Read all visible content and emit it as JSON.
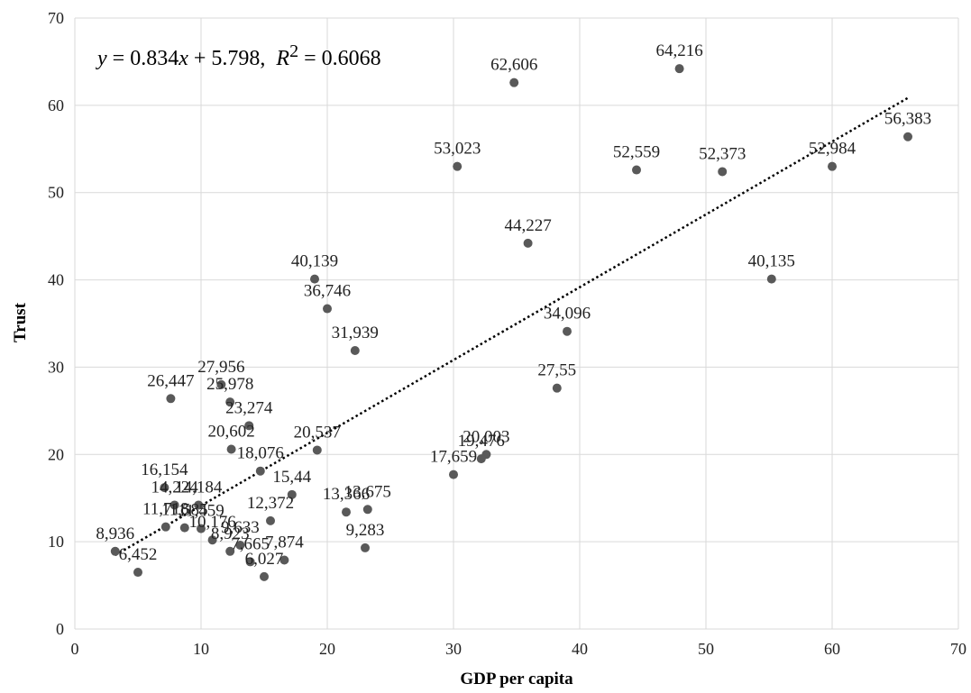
{
  "chart_data": {
    "type": "scatter",
    "xlabel": "GDP per capita",
    "ylabel": "Trust",
    "xlim": [
      0,
      70
    ],
    "ylim": [
      0,
      70
    ],
    "xticks": [
      "0",
      "10",
      "20",
      "30",
      "40",
      "50",
      "60",
      "70"
    ],
    "yticks": [
      "0",
      "10",
      "20",
      "30",
      "40",
      "50",
      "60",
      "70"
    ],
    "grid": true,
    "trendline": {
      "style": "dotted",
      "slope": 0.834,
      "intercept": 5.798,
      "r2": 0.6068
    },
    "equation_text": "y = 0.834x + 5.798,  R² = 0.6068",
    "points": [
      {
        "x": 47.9,
        "y": 64.2,
        "label": "64,216"
      },
      {
        "x": 34.8,
        "y": 62.6,
        "label": "62,606"
      },
      {
        "x": 66.0,
        "y": 56.4,
        "label": "56,383"
      },
      {
        "x": 30.3,
        "y": 53.0,
        "label": "53,023"
      },
      {
        "x": 60.0,
        "y": 53.0,
        "label": "52,984"
      },
      {
        "x": 44.5,
        "y": 52.6,
        "label": "52,559"
      },
      {
        "x": 51.3,
        "y": 52.4,
        "label": "52,373"
      },
      {
        "x": 35.9,
        "y": 44.2,
        "label": "44,227"
      },
      {
        "x": 19.0,
        "y": 40.1,
        "label": "40,139"
      },
      {
        "x": 55.2,
        "y": 40.1,
        "label": "40,135"
      },
      {
        "x": 20.0,
        "y": 36.7,
        "label": "36,746"
      },
      {
        "x": 39.0,
        "y": 34.1,
        "label": "34,096"
      },
      {
        "x": 22.2,
        "y": 31.9,
        "label": "31,939"
      },
      {
        "x": 11.6,
        "y": 28.0,
        "label": "27,956"
      },
      {
        "x": 38.2,
        "y": 27.6,
        "label": "27,55"
      },
      {
        "x": 7.6,
        "y": 26.4,
        "label": "26,447"
      },
      {
        "x": 12.3,
        "y": 26.0,
        "label": "25,978"
      },
      {
        "x": 13.8,
        "y": 23.3,
        "label": "23,274"
      },
      {
        "x": 12.4,
        "y": 20.6,
        "label": "20,602"
      },
      {
        "x": 19.2,
        "y": 20.5,
        "label": "20,537"
      },
      {
        "x": 32.6,
        "y": 20.0,
        "label": "20,003"
      },
      {
        "x": 32.2,
        "y": 19.5,
        "label": "19,476"
      },
      {
        "x": 14.7,
        "y": 18.1,
        "label": "18,076"
      },
      {
        "x": 30.0,
        "y": 17.7,
        "label": "17,659"
      },
      {
        "x": 7.1,
        "y": 16.2,
        "label": "16,154"
      },
      {
        "x": 17.2,
        "y": 15.4,
        "label": "15,44"
      },
      {
        "x": 7.9,
        "y": 14.2,
        "label": "14,224"
      },
      {
        "x": 9.8,
        "y": 14.2,
        "label": "14,184"
      },
      {
        "x": 23.2,
        "y": 13.7,
        "label": "13,675"
      },
      {
        "x": 21.5,
        "y": 13.4,
        "label": "13,366"
      },
      {
        "x": 15.5,
        "y": 12.4,
        "label": "12,372"
      },
      {
        "x": 7.2,
        "y": 11.7,
        "label": "11,718"
      },
      {
        "x": 8.7,
        "y": 11.6,
        "label": "11,585"
      },
      {
        "x": 10.0,
        "y": 11.5,
        "label": "11,459"
      },
      {
        "x": 10.9,
        "y": 10.2,
        "label": "10,176"
      },
      {
        "x": 13.1,
        "y": 9.6,
        "label": "9,633"
      },
      {
        "x": 23.0,
        "y": 9.3,
        "label": "9,283"
      },
      {
        "x": 3.2,
        "y": 8.9,
        "label": "8,936"
      },
      {
        "x": 12.3,
        "y": 8.9,
        "label": "8,923"
      },
      {
        "x": 16.6,
        "y": 7.9,
        "label": "7,874"
      },
      {
        "x": 13.9,
        "y": 7.7,
        "label": "7,665"
      },
      {
        "x": 5.0,
        "y": 6.5,
        "label": "6,452"
      },
      {
        "x": 15.0,
        "y": 6.0,
        "label": "6,027"
      }
    ]
  }
}
